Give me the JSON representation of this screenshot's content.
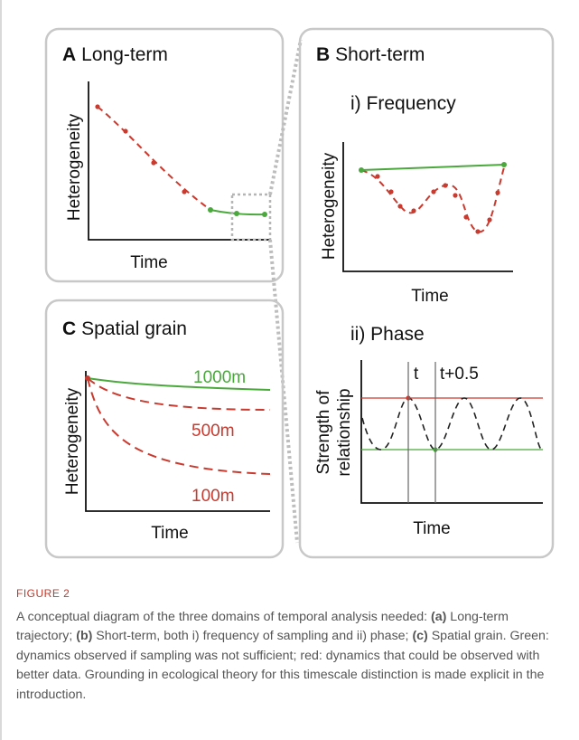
{
  "panels": {
    "a": {
      "letter": "A",
      "title": "Long-term",
      "ylabel": "Heterogeneity",
      "xlabel": "Time"
    },
    "b": {
      "letter": "B",
      "title": "Short-term",
      "sub_i": {
        "title": "i) Frequency",
        "ylabel": "Heterogeneity",
        "xlabel": "Time"
      },
      "sub_ii": {
        "title": "ii) Phase",
        "ylabel_line1": "Strength of",
        "ylabel_line2": "relationship",
        "xlabel": "Time",
        "marker_t": "t",
        "marker_t2": "t+0.5"
      }
    },
    "c": {
      "letter": "C",
      "title": "Spatial grain",
      "ylabel": "Heterogeneity",
      "xlabel": "Time",
      "series": [
        {
          "name": "1000m",
          "color": "#4aa83c"
        },
        {
          "name": "500m",
          "color": "#c93a2f"
        },
        {
          "name": "100m",
          "color": "#c93a2f"
        }
      ]
    }
  },
  "colors": {
    "green": "#4aa83c",
    "red": "#c93a2f",
    "frame": "#c8c8c8"
  },
  "caption": {
    "label": "FIGURE 2",
    "t1": "A conceptual diagram of the three domains of temporal analysis needed: ",
    "a": "(a)",
    "t2": " Long-term trajectory; ",
    "b": "(b)",
    "t3": " Short-term, both i) frequency of sampling and ii) phase; ",
    "c": "(c)",
    "t4": " Spatial grain. Green: dynamics observed if sampling was not sufficient; red: dynamics that could be observed with better data. Grounding in ecological theory for this timescale distinction is made explicit in the introduction."
  }
}
